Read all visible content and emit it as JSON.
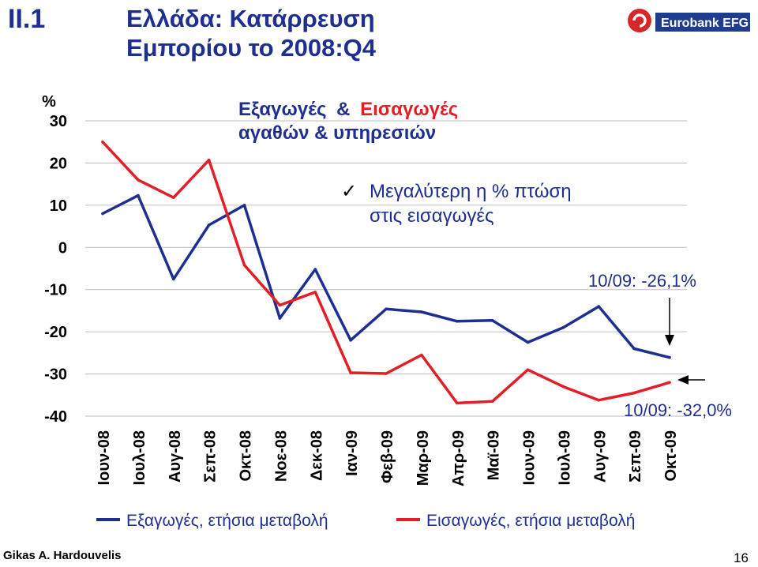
{
  "slide": {
    "section": "II.1",
    "title_line1": "Ελλάδα:  Κατάρρευση",
    "title_line2": "Εμπορίου το 2008:Q4",
    "author": "Gikas A. Hardouvelis",
    "page_number": "16"
  },
  "logo": {
    "text": "Eurobank EFG",
    "color": "#1f3d8f",
    "mark_color": "#d7262b"
  },
  "chart_data": {
    "type": "line",
    "heading": {
      "part1": "Εξαγωγές",
      "amp": "&",
      "part2": "Εισαγωγές",
      "line2": "αγαθών & υπηρεσιών"
    },
    "note": {
      "check": "✓",
      "line1": "Μεγαλύτερη η % πτώση",
      "line2": "στις εισαγωγές"
    },
    "ylabel": "%",
    "ylim": [
      -40,
      30
    ],
    "yticks": [
      "30",
      "20",
      "10",
      "0",
      "-10",
      "-20",
      "-30",
      "-40"
    ],
    "yticks_values": [
      30,
      20,
      10,
      0,
      -10,
      -20,
      -30,
      -40
    ],
    "grid": true,
    "categories": [
      "Ιουν-08",
      "Ιουλ-08",
      "Αυγ-08",
      "Σεπ-08",
      "Οκτ-08",
      "Νοε-08",
      "Δεκ-08",
      "Ιαν-09",
      "Φεβ-09",
      "Μαρ-09",
      "Απρ-09",
      "Μαϊ-09",
      "Ιουν-09",
      "Ιουλ-09",
      "Αυγ-09",
      "Σεπ-09",
      "Οκτ-09"
    ],
    "series": [
      {
        "name": "Εξαγωγές, ετήσια μεταβολή",
        "color": "#1f2f8f",
        "values": [
          8,
          12.3,
          -7.5,
          5.3,
          10,
          -16.8,
          -5.2,
          -22,
          -14.6,
          -15.3,
          -17.5,
          -17.3,
          -22.5,
          -19,
          -14,
          -24,
          -26.1
        ]
      },
      {
        "name": "Εισαγωγές, ετήσια μεταβολή",
        "color": "#e21f26",
        "values": [
          25,
          16,
          11.8,
          20.7,
          -4.2,
          -13.7,
          -10.6,
          -29.7,
          -29.9,
          -25.5,
          -36.9,
          -36.5,
          -29,
          -33,
          -36.2,
          -34.5,
          -32
        ]
      }
    ],
    "annotations": [
      {
        "text": "10/09: -26,1%",
        "color": "#1f2f8f"
      },
      {
        "text": "10/09: -32,0%",
        "color": "#1f2f8f"
      }
    ],
    "legend_position": "bottom"
  }
}
